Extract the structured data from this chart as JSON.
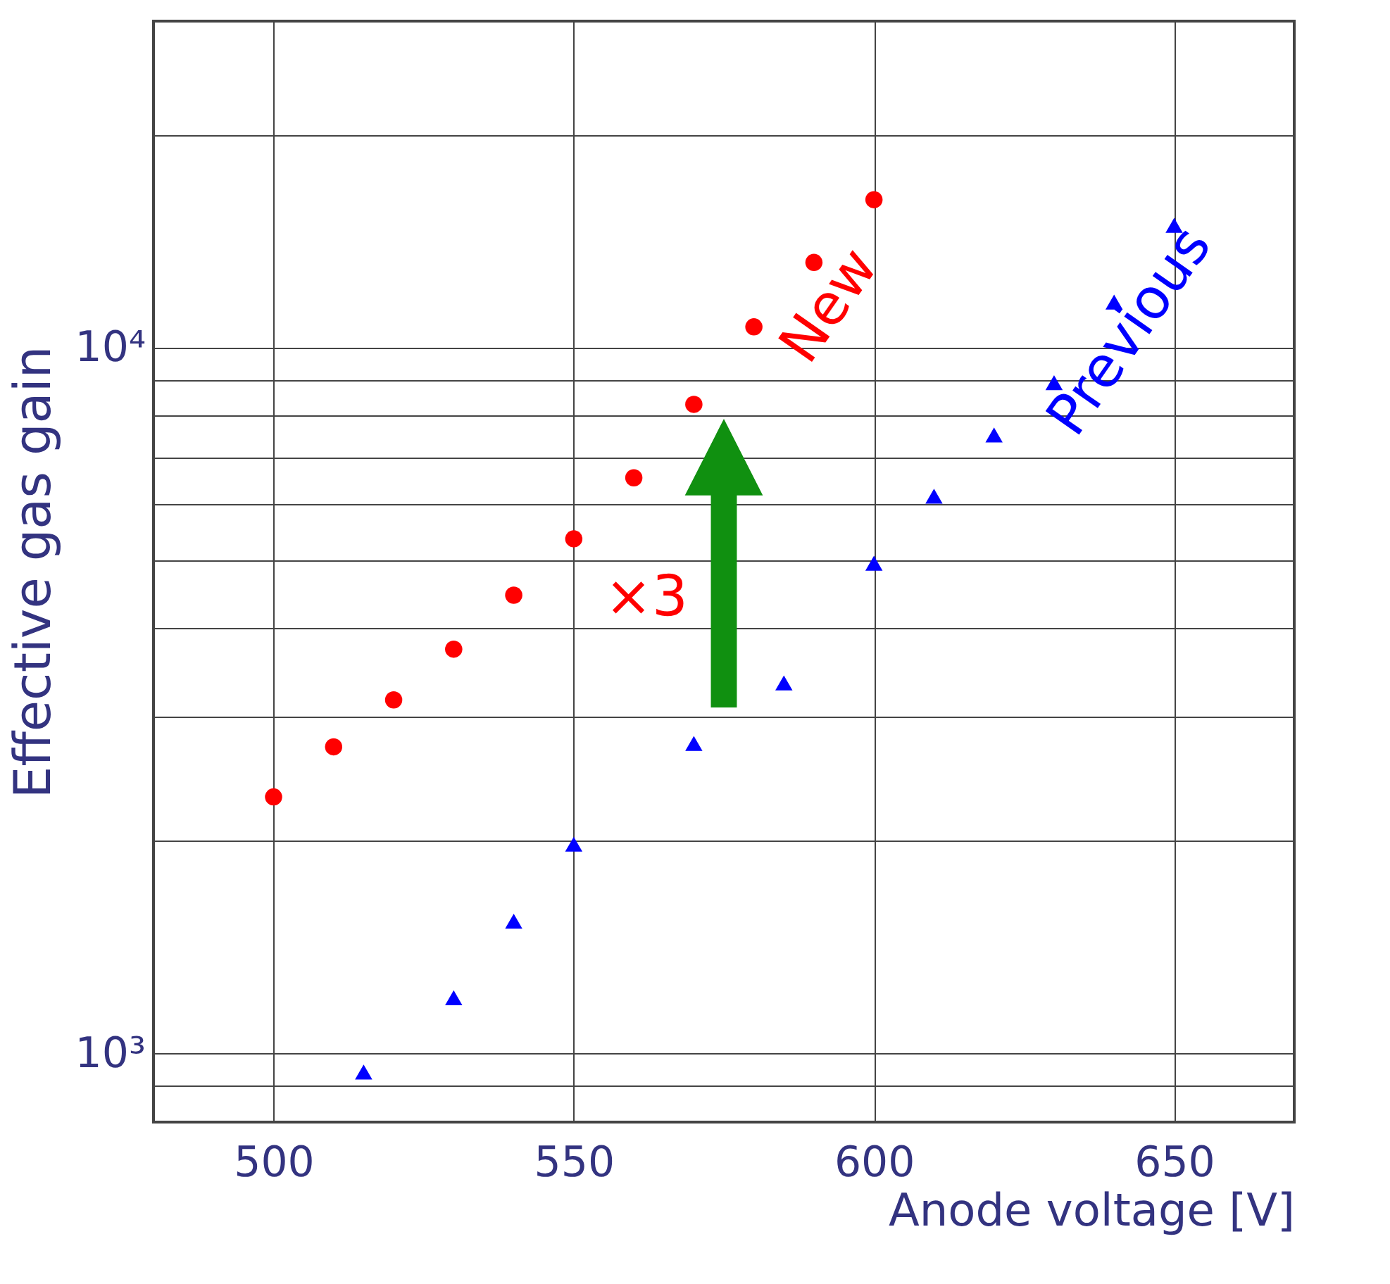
{
  "chart_data": {
    "type": "scatter",
    "xlabel": "Anode voltage [V]",
    "ylabel": "Effective gas gain",
    "log": "y",
    "grid": true,
    "xlim": [
      480,
      670
    ],
    "xticks": [
      500,
      550,
      600,
      650
    ],
    "ylim": [
      800,
      29000
    ],
    "yticks": [
      {
        "value": 900,
        "label": null
      },
      {
        "value": 1000,
        "label": "10³"
      },
      {
        "value": 2000,
        "label": null
      },
      {
        "value": 3000,
        "label": null
      },
      {
        "value": 4000,
        "label": null
      },
      {
        "value": 5000,
        "label": null
      },
      {
        "value": 6000,
        "label": null
      },
      {
        "value": 7000,
        "label": null
      },
      {
        "value": 8000,
        "label": null
      },
      {
        "value": 9000,
        "label": null
      },
      {
        "value": 10000,
        "label": "10⁴"
      },
      {
        "value": 20000,
        "label": null
      }
    ],
    "series": [
      {
        "name": "New",
        "color": "#ff0000",
        "marker": "circle",
        "x": [
          500,
          510,
          520,
          530,
          540,
          550,
          560,
          570,
          580,
          590,
          600
        ],
        "values": [
          2310,
          2720,
          3170,
          3740,
          4460,
          5360,
          6540,
          8310,
          10700,
          13200,
          16200
        ]
      },
      {
        "name": "Previous",
        "color": "#0000ff",
        "marker": "triangle",
        "x": [
          515,
          530,
          540,
          550,
          570,
          585,
          600,
          610,
          620,
          630,
          640,
          650
        ],
        "values": [
          942,
          1200,
          1540,
          1980,
          2750,
          3350,
          4950,
          6160,
          7520,
          8920,
          11600,
          14900
        ]
      }
    ],
    "annotations": [
      "×3"
    ]
  }
}
